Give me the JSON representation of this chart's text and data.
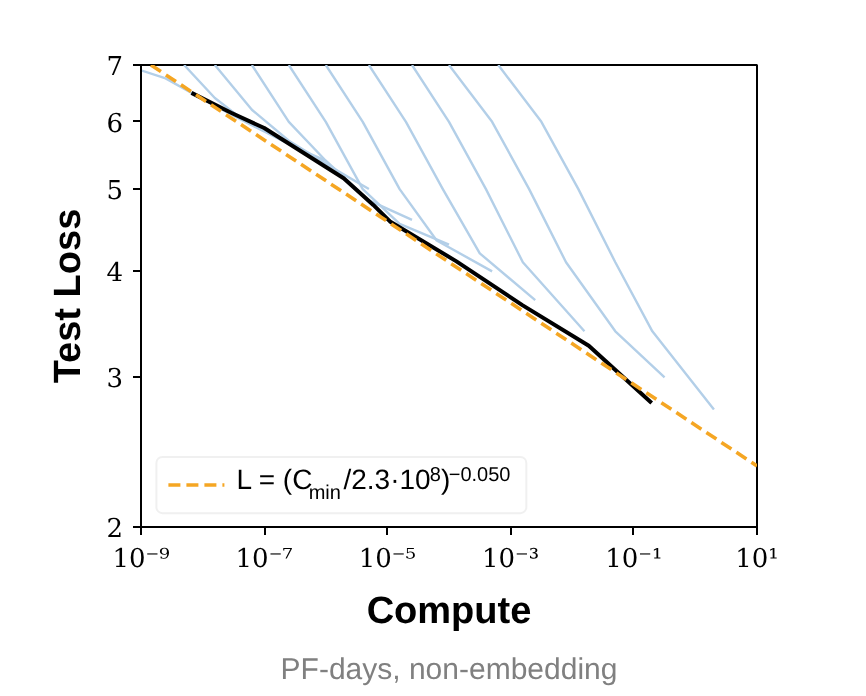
{
  "chart_data": {
    "type": "line",
    "xlabel": "Compute",
    "ylabel": "Test Loss",
    "annotations": [
      "PF-days, non-embedding"
    ],
    "log": "xy",
    "xlim": [
      1e-09,
      10
    ],
    "ylim": [
      2,
      7
    ],
    "xticks": [
      {
        "value": 1e-09,
        "label": "10⁻⁹"
      },
      {
        "value": 1e-07,
        "label": "10⁻⁷"
      },
      {
        "value": 1e-05,
        "label": "10⁻⁵"
      },
      {
        "value": 0.001,
        "label": "10⁻³"
      },
      {
        "value": 0.1,
        "label": "10⁻¹"
      },
      {
        "value": 10,
        "label": "10¹"
      }
    ],
    "yticks": [
      2,
      3,
      4,
      5,
      6,
      7
    ],
    "legend": "bottom left",
    "series": [
      {
        "color": "#b3cfe8",
        "x": [
          1e-09,
          2.51e-09,
          6.31e-09,
          3.16e-08,
          1e-07
        ],
        "values": [
          6.9,
          6.75,
          6.5,
          6.1,
          5.85
        ]
      },
      {
        "color": "#b3cfe8",
        "x": [
          5.01e-09,
          1.58e-08,
          5.01e-08,
          3.16e-07,
          1e-06
        ],
        "values": [
          7,
          6.4,
          6.0,
          5.6,
          5.4
        ]
      },
      {
        "color": "#b3cfe8",
        "x": [
          1.58e-08,
          6.31e-08,
          2.51e-07,
          1.58e-06,
          5.01e-06
        ],
        "values": [
          7,
          6.2,
          5.7,
          5.25,
          5.0
        ]
      },
      {
        "color": "#b3cfe8",
        "x": [
          6.31e-08,
          2.51e-07,
          1e-06,
          5.01e-06,
          2.51e-05
        ],
        "values": [
          7,
          6.0,
          5.4,
          4.85,
          4.6
        ]
      },
      {
        "color": "#b3cfe8",
        "x": [
          2.51e-07,
          1e-06,
          3.98e-06,
          1.58e-05,
          0.0001
        ],
        "values": [
          7,
          6.0,
          5.0,
          4.55,
          4.3
        ]
      },
      {
        "color": "#b3cfe8",
        "x": [
          1e-06,
          3.98e-06,
          1.58e-05,
          6.31e-05,
          0.000501
        ],
        "values": [
          7,
          6.0,
          5.0,
          4.35,
          4.0
        ]
      },
      {
        "color": "#b3cfe8",
        "x": [
          5.01e-06,
          2e-05,
          7.94e-05,
          0.000316,
          0.00251
        ],
        "values": [
          7,
          6.0,
          5.0,
          4.2,
          3.7
        ]
      },
      {
        "color": "#b3cfe8",
        "x": [
          2.51e-05,
          0.0001,
          0.000398,
          0.00158,
          0.0158
        ],
        "values": [
          7,
          6,
          5,
          4.1,
          3.4
        ]
      },
      {
        "color": "#b3cfe8",
        "x": [
          0.0001,
          0.000501,
          0.002,
          0.00794,
          0.0501,
          0.316
        ],
        "values": [
          7,
          6,
          5,
          4.1,
          3.4,
          3.0
        ]
      },
      {
        "color": "#b3cfe8",
        "x": [
          0.000631,
          0.00316,
          0.0126,
          0.0501,
          0.2,
          2
        ],
        "values": [
          7,
          6,
          5,
          4.1,
          3.4,
          2.75
        ]
      },
      {
        "color": "#000000",
        "x": [
          6.6e-09,
          2.9e-08,
          1e-07,
          1.95e-06,
          5.9e-06,
          1.1e-05,
          0.000132,
          0.00155,
          0.0186,
          0.195
        ],
        "values": [
          6.49,
          6.15,
          5.9,
          5.15,
          4.79,
          4.58,
          4.11,
          3.65,
          3.27,
          2.8
        ]
      },
      {
        "name": "L = (C$_{min}$/2.3·10$^{8}$)$^{−0.050}$",
        "color": "#f5a623",
        "line_style": "dashed",
        "x": [
          1.45e-09,
          10
        ],
        "values": [
          7,
          2.36
        ]
      }
    ]
  }
}
